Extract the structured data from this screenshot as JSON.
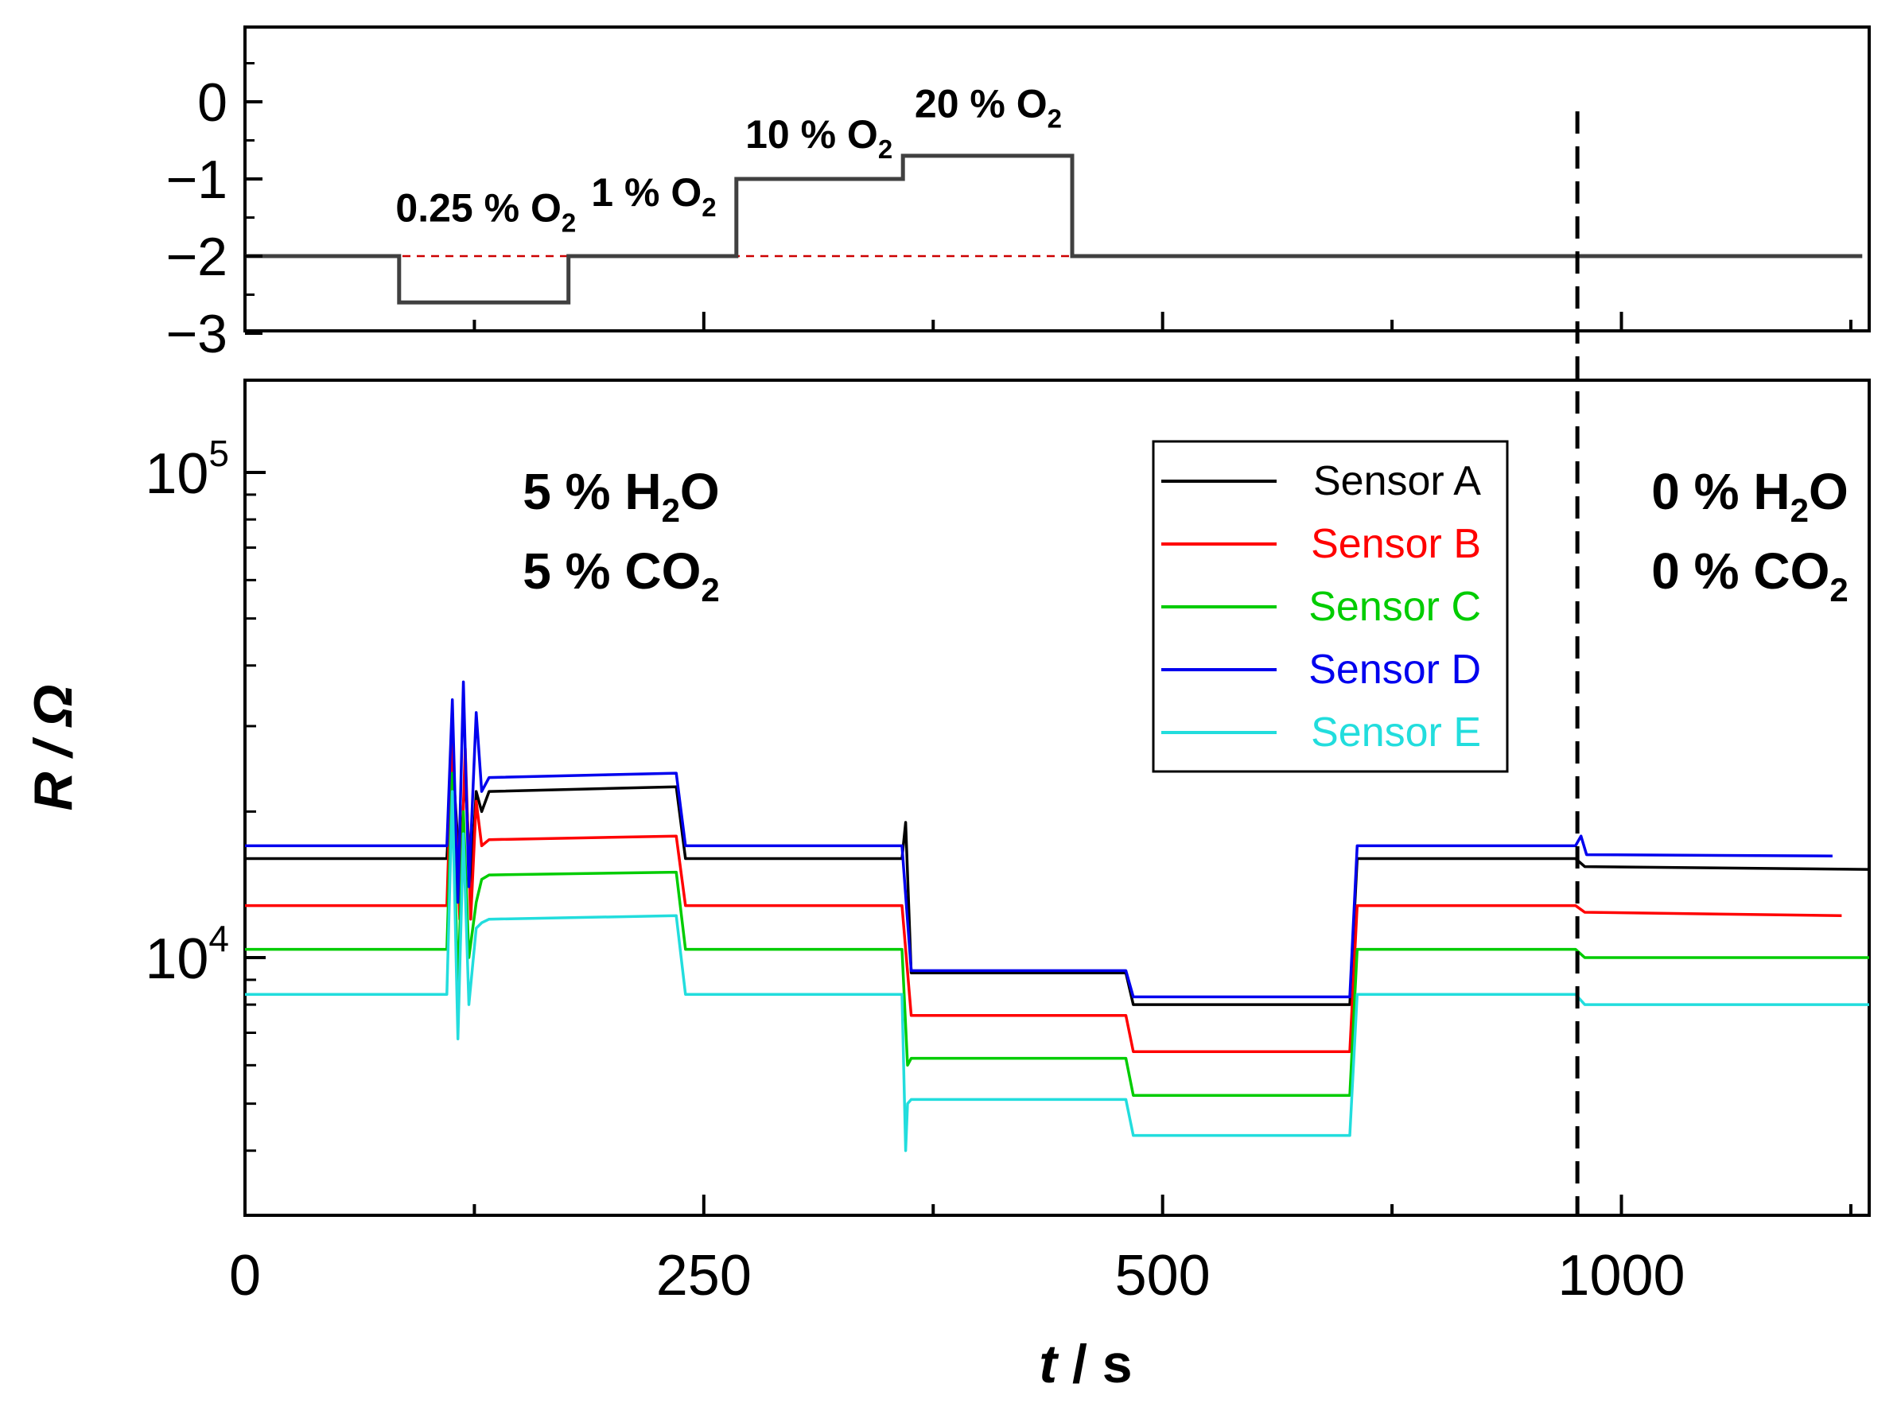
{
  "chart_data": [
    {
      "type": "line",
      "panel": "top",
      "x_range": [
        0,
        1180
      ],
      "yticks": [
        "0",
        "−1",
        "−2",
        "−3"
      ],
      "ytick_values": [
        0,
        -1,
        -2,
        -3
      ],
      "ylim": [
        -3,
        1
      ],
      "series": [
        {
          "color": "#404040",
          "points": [
            [
              0,
              -2
            ],
            [
              112,
              -2
            ],
            [
              112,
              -2.6
            ],
            [
              235,
              -2.6
            ],
            [
              235,
              -2
            ],
            [
              357,
              -2
            ],
            [
              357,
              -1
            ],
            [
              478,
              -1
            ],
            [
              478,
              -0.7
            ],
            [
              601,
              -0.7
            ],
            [
              601,
              -2
            ],
            [
              1175,
              -2
            ]
          ]
        }
      ],
      "baseline": {
        "y": -2,
        "color": "#cc0000",
        "style": "dashed",
        "x_range": [
          0,
          1175
        ]
      },
      "annotations": [
        {
          "pre": "0.25 % O",
          "sub": "2",
          "x": 175,
          "y": -1.55
        },
        {
          "pre": "1 % O",
          "sub": "2",
          "x": 297,
          "y": -1.35
        },
        {
          "pre": "10 % O",
          "sub": "2",
          "x": 417,
          "y": -0.6
        },
        {
          "pre": "20 % O",
          "sub": "2",
          "x": 540,
          "y": -0.2
        }
      ]
    },
    {
      "type": "line",
      "panel": "bottom",
      "y_scale": "log",
      "ylabel": "R / Ω",
      "xlabel_t": "t",
      "xlabel_rest": " / s",
      "xticks": [
        "0",
        "250",
        "500",
        "1000"
      ],
      "xtick_values": [
        0,
        250,
        500,
        750
      ],
      "xlim": [
        0,
        885
      ],
      "ylim": [
        3000,
        160000
      ],
      "ytick_major": [
        {
          "value": 10000,
          "base": "10",
          "exp": "4"
        },
        {
          "value": 100000,
          "base": "10",
          "exp": "5"
        }
      ],
      "ytick_minor": [
        4000,
        5000,
        6000,
        7000,
        8000,
        9000,
        20000,
        30000,
        40000,
        50000,
        60000,
        70000,
        80000,
        90000
      ],
      "vline_x": 726,
      "series": [
        {
          "name": "Sensor A",
          "color": "#000000",
          "points": [
            [
              0,
              16000
            ],
            [
              110,
              16000
            ],
            [
              113,
              26000
            ],
            [
              117,
              15000
            ],
            [
              120,
              24000
            ],
            [
              123,
              14000
            ],
            [
              126,
              22000
            ],
            [
              129,
              20000
            ],
            [
              133,
              22000
            ],
            [
              235,
              22500
            ],
            [
              240,
              16000
            ],
            [
              358,
              16000
            ],
            [
              360,
              19000
            ],
            [
              363,
              9300
            ],
            [
              480,
              9300
            ],
            [
              484,
              8000
            ],
            [
              602,
              8000
            ],
            [
              606,
              16000
            ],
            [
              725,
              16000
            ],
            [
              730,
              15400
            ],
            [
              885,
              15200
            ]
          ]
        },
        {
          "name": "Sensor B",
          "color": "#ff0000",
          "points": [
            [
              0,
              12800
            ],
            [
              110,
              12800
            ],
            [
              113,
              29000
            ],
            [
              117,
              12000
            ],
            [
              120,
              27000
            ],
            [
              123,
              12000
            ],
            [
              126,
              21000
            ],
            [
              129,
              17000
            ],
            [
              133,
              17500
            ],
            [
              235,
              17800
            ],
            [
              240,
              12800
            ],
            [
              358,
              12800
            ],
            [
              363,
              7600
            ],
            [
              480,
              7600
            ],
            [
              484,
              6400
            ],
            [
              602,
              6400
            ],
            [
              606,
              12800
            ],
            [
              725,
              12800
            ],
            [
              730,
              12400
            ],
            [
              870,
              12200
            ]
          ]
        },
        {
          "name": "Sensor C",
          "color": "#00cc00",
          "points": [
            [
              0,
              10400
            ],
            [
              110,
              10400
            ],
            [
              113,
              24000
            ],
            [
              116,
              8500
            ],
            [
              119,
              20000
            ],
            [
              122,
              10000
            ],
            [
              126,
              13000
            ],
            [
              129,
              14500
            ],
            [
              133,
              14800
            ],
            [
              235,
              15000
            ],
            [
              240,
              10400
            ],
            [
              358,
              10400
            ],
            [
              361,
              6000
            ],
            [
              363,
              6200
            ],
            [
              480,
              6200
            ],
            [
              484,
              5200
            ],
            [
              602,
              5200
            ],
            [
              606,
              10400
            ],
            [
              725,
              10400
            ],
            [
              730,
              10000
            ],
            [
              885,
              10000
            ]
          ]
        },
        {
          "name": "Sensor D",
          "color": "#0000ee",
          "points": [
            [
              0,
              17000
            ],
            [
              110,
              17000
            ],
            [
              113,
              34000
            ],
            [
              116,
              13000
            ],
            [
              119,
              37000
            ],
            [
              122,
              14000
            ],
            [
              126,
              32000
            ],
            [
              129,
              22000
            ],
            [
              133,
              23500
            ],
            [
              235,
              24000
            ],
            [
              240,
              17000
            ],
            [
              358,
              17000
            ],
            [
              363,
              9400
            ],
            [
              480,
              9400
            ],
            [
              484,
              8300
            ],
            [
              602,
              8300
            ],
            [
              606,
              17000
            ],
            [
              725,
              17000
            ],
            [
              728,
              17800
            ],
            [
              731,
              16300
            ],
            [
              865,
              16200
            ]
          ]
        },
        {
          "name": "Sensor E",
          "color": "#22dddd",
          "points": [
            [
              0,
              8400
            ],
            [
              110,
              8400
            ],
            [
              113,
              22000
            ],
            [
              116,
              6800
            ],
            [
              119,
              18000
            ],
            [
              122,
              8000
            ],
            [
              126,
              11500
            ],
            [
              129,
              11800
            ],
            [
              133,
              12000
            ],
            [
              235,
              12200
            ],
            [
              240,
              8400
            ],
            [
              358,
              8400
            ],
            [
              360,
              4000
            ],
            [
              361,
              5000
            ],
            [
              363,
              5100
            ],
            [
              480,
              5100
            ],
            [
              484,
              4300
            ],
            [
              602,
              4300
            ],
            [
              606,
              8400
            ],
            [
              725,
              8400
            ],
            [
              730,
              8000
            ],
            [
              885,
              8000
            ]
          ]
        }
      ],
      "annotations": [
        {
          "lines": [
            {
              "pre": "5 % H",
              "sub": "2",
              "post": "O"
            },
            {
              "pre": "5 % CO",
              "sub": "2",
              "post": ""
            }
          ],
          "x": 205
        },
        {
          "lines": [
            {
              "pre": "0 % H",
              "sub": "2",
              "post": "O"
            },
            {
              "pre": "0 % CO",
              "sub": "2",
              "post": ""
            }
          ],
          "x": 820
        }
      ],
      "legend": {
        "location": "upper-center-right"
      }
    }
  ]
}
